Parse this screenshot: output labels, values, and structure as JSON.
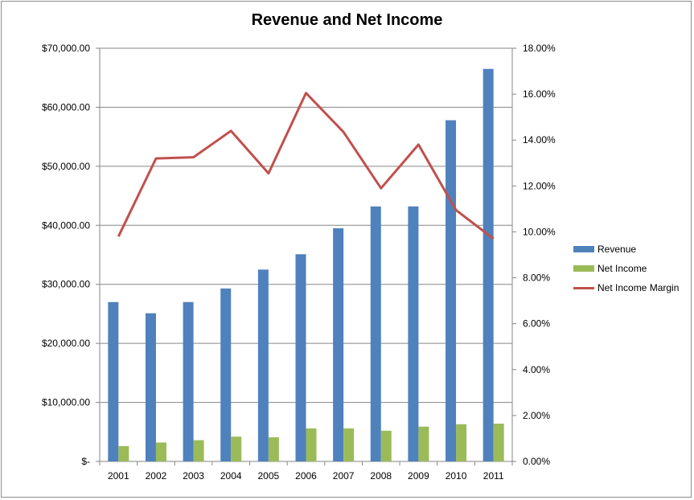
{
  "chart_data": {
    "type": "bar",
    "title": "Revenue and Net Income",
    "categories": [
      "2001",
      "2002",
      "2003",
      "2004",
      "2005",
      "2006",
      "2007",
      "2008",
      "2009",
      "2010",
      "2011"
    ],
    "series": [
      {
        "name": "Revenue",
        "type": "bar",
        "axis": "left",
        "color": "#4f81bd",
        "values": [
          27000,
          25100,
          27000,
          29300,
          32500,
          35100,
          39500,
          43200,
          43200,
          57800,
          66500
        ]
      },
      {
        "name": "Net Income",
        "type": "bar",
        "axis": "left",
        "color": "#9bbb59",
        "values": [
          2600,
          3200,
          3600,
          4200,
          4100,
          5600,
          5600,
          5200,
          5900,
          6300,
          6400
        ]
      },
      {
        "name": "Net Income Margin",
        "type": "line",
        "axis": "right",
        "color": "#c0504d",
        "values": [
          9.8,
          13.2,
          13.25,
          14.4,
          12.55,
          16.05,
          14.35,
          11.9,
          13.8,
          10.95,
          9.7
        ]
      }
    ],
    "y_left": {
      "ylim": [
        0,
        70000
      ],
      "ticks": [
        0,
        10000,
        20000,
        30000,
        40000,
        50000,
        60000,
        70000
      ],
      "tick_labels": [
        "$-",
        "$10,000.00",
        "$20,000.00",
        "$30,000.00",
        "$40,000.00",
        "$50,000.00",
        "$60,000.00",
        "$70,000.00"
      ]
    },
    "y_right": {
      "ylim": [
        0,
        18
      ],
      "ticks": [
        0,
        2,
        4,
        6,
        8,
        10,
        12,
        14,
        16,
        18
      ],
      "tick_labels": [
        "0.00%",
        "2.00%",
        "4.00%",
        "6.00%",
        "8.00%",
        "10.00%",
        "12.00%",
        "14.00%",
        "16.00%",
        "18.00%"
      ]
    },
    "grid": true,
    "legend_position": "right"
  }
}
